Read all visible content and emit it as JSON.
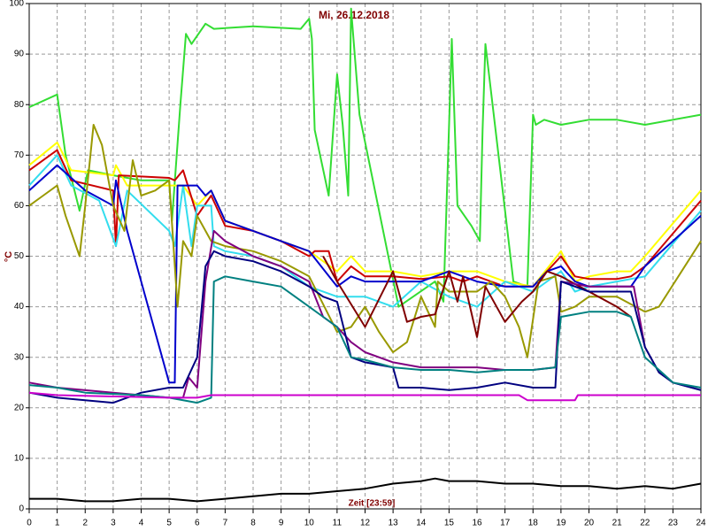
{
  "chart_data": {
    "type": "line",
    "title": "Mi, 26.12.2018",
    "y_label": "°C",
    "x_label": "Zeit [23:59]",
    "xlim": [
      0,
      24
    ],
    "xticks": [
      0,
      1,
      2,
      3,
      4,
      5,
      6,
      7,
      8,
      9,
      10,
      11,
      12,
      13,
      14,
      15,
      16,
      17,
      18,
      19,
      20,
      21,
      22,
      23,
      24
    ],
    "ylim": [
      0,
      100
    ],
    "yticks": [
      0,
      10,
      20,
      30,
      40,
      50,
      60,
      70,
      80,
      90,
      100
    ],
    "grid": true,
    "series": [
      {
        "color": "#33dd33",
        "x": [
          0,
          1,
          1.3,
          1.8,
          2.1,
          3,
          4,
          5,
          5.1,
          5.4,
          5.6,
          5.8,
          6.3,
          6.6,
          8,
          9.7,
          10,
          10.1,
          10.2,
          10.7,
          11,
          11.2,
          11.4,
          11.5,
          11.8,
          13.2,
          14.5,
          14.8,
          15.1,
          15.3,
          15.8,
          16.1,
          16.2,
          16.3,
          17.3,
          17.8,
          18,
          18.1,
          18.4,
          19,
          20,
          21,
          22,
          24
        ],
        "values": [
          79.5,
          82,
          70,
          59,
          67,
          66,
          65,
          65,
          57,
          80,
          94,
          92,
          96,
          95,
          95.5,
          95,
          97,
          93,
          75,
          62,
          86,
          76,
          62,
          99,
          78,
          40,
          45,
          41,
          93,
          60,
          56,
          53,
          75,
          92,
          45,
          44,
          78,
          76,
          77,
          76,
          77,
          77,
          76,
          78
        ]
      },
      {
        "color": "#ffff00",
        "x": [
          0,
          1,
          1.5,
          3,
          3.1,
          3.5,
          5,
          5.5,
          6,
          6.5,
          7,
          8,
          9,
          10,
          11,
          11.5,
          12,
          13,
          14,
          15,
          16,
          17,
          18,
          19,
          19.5,
          20,
          21,
          21.5,
          22,
          24
        ],
        "values": [
          68,
          72.5,
          67,
          66,
          68,
          64,
          64,
          64,
          60,
          63,
          57,
          55,
          53,
          51,
          47,
          50,
          47,
          47,
          46,
          47,
          47,
          45,
          44,
          51,
          45,
          46,
          47,
          47,
          50,
          63
        ]
      },
      {
        "color": "#cc0000",
        "x": [
          0,
          1,
          1.5,
          3,
          3.1,
          3.2,
          5,
          5.2,
          5.5,
          6,
          6.5,
          7,
          8,
          9,
          10,
          10.2,
          10.7,
          11,
          11.5,
          12,
          13,
          14,
          15,
          15.5,
          16,
          17,
          18,
          18.5,
          19,
          19.5,
          20,
          21,
          21.5,
          22,
          24
        ],
        "values": [
          67,
          71,
          65,
          63,
          52,
          66,
          65.5,
          65,
          67,
          58,
          62,
          56,
          55,
          53,
          50,
          51,
          51,
          45,
          48,
          46,
          46,
          45.5,
          46,
          45,
          46,
          44,
          44,
          47,
          50,
          46,
          45.5,
          45.5,
          46,
          48,
          61
        ]
      },
      {
        "color": "#33ddee",
        "x": [
          0,
          1,
          1.5,
          2.5,
          3.1,
          3.5,
          5,
          5.2,
          5.5,
          5.8,
          6,
          6.5,
          6.6,
          7,
          8,
          9,
          10,
          11,
          12,
          13,
          14,
          15,
          16,
          17,
          18,
          19,
          19.5,
          20,
          21,
          22,
          24
        ],
        "values": [
          64,
          70,
          64,
          61,
          52,
          63,
          55,
          52,
          64,
          52,
          60,
          60,
          52,
          51,
          50,
          48,
          44,
          42,
          42,
          40,
          45,
          42,
          40,
          45,
          43,
          47,
          43,
          44,
          45,
          46,
          59
        ]
      },
      {
        "color": "#0000cc",
        "x": [
          0,
          1,
          2,
          3,
          3.1,
          3.5,
          5,
          5.2,
          5.3,
          6,
          6.3,
          6.5,
          7,
          8,
          9,
          10,
          11,
          11.5,
          12,
          13,
          14,
          15,
          16,
          17,
          18,
          18.5,
          19,
          19.5,
          20,
          21,
          21.5,
          22,
          24
        ],
        "values": [
          63,
          68,
          63,
          60,
          65,
          55,
          25,
          25,
          64,
          64,
          62,
          63,
          57,
          55,
          53,
          51,
          44,
          46,
          45,
          45,
          45,
          47,
          45,
          44,
          44,
          47,
          48,
          45,
          44,
          44,
          44,
          48,
          58
        ]
      },
      {
        "color": "#999900",
        "x": [
          0,
          0.5,
          1,
          1.3,
          1.8,
          2,
          2.3,
          2.6,
          3,
          3.4,
          3.7,
          4,
          4.5,
          5,
          5.3,
          5.5,
          5.8,
          6,
          6.5,
          7,
          8,
          9,
          10,
          11,
          11.5,
          12,
          12.5,
          13,
          13.5,
          14,
          14.5,
          14.6,
          15,
          16,
          16.5,
          17,
          17.5,
          17.8,
          18.2,
          18.8,
          19,
          19.5,
          20,
          21,
          22,
          22.5,
          24
        ],
        "values": [
          60,
          62,
          64,
          58,
          50,
          60,
          76,
          72,
          60,
          55,
          69,
          62,
          63,
          65,
          40,
          53,
          50,
          58,
          53,
          52,
          51,
          49,
          46,
          35,
          36,
          40,
          35,
          31,
          33,
          42,
          36,
          45,
          43,
          43,
          45,
          42,
          36,
          30,
          45,
          46,
          39,
          40,
          42,
          42,
          39,
          40,
          53
        ]
      },
      {
        "color": "#800000",
        "x": [
          10.5,
          11,
          12,
          13,
          13.5,
          14,
          14.5,
          15,
          15.3,
          15.5,
          16,
          16.3,
          16.5,
          17,
          17.6,
          18,
          18.5,
          19,
          20,
          21,
          21.5
        ],
        "values": [
          50,
          45,
          36,
          47,
          37,
          38,
          38.5,
          47,
          41,
          46,
          34,
          44,
          42,
          37,
          41,
          43,
          47,
          46,
          43,
          40,
          38
        ]
      },
      {
        "color": "#800080",
        "x": [
          0,
          1,
          3,
          5,
          5.5,
          5.7,
          6,
          6.3,
          6.6,
          7,
          8,
          9,
          10,
          10.5,
          11,
          11.5,
          12,
          13,
          14,
          15,
          16,
          17,
          18,
          18.8,
          19,
          20,
          21,
          21.6,
          22,
          22.5,
          23,
          24
        ],
        "values": [
          25,
          24,
          23,
          22,
          22,
          26,
          24,
          45,
          55,
          53,
          50,
          48,
          45,
          38,
          36,
          33,
          31,
          29,
          28,
          28,
          28,
          27.5,
          27.5,
          28,
          45,
          44,
          44,
          44,
          32,
          27,
          25,
          23.5
        ]
      },
      {
        "color": "#000080",
        "x": [
          0,
          1,
          3,
          4,
          5,
          5.5,
          6,
          6.3,
          6.6,
          7,
          8,
          9,
          10,
          10.5,
          11,
          11.5,
          12,
          13,
          13.2,
          14,
          15,
          16,
          17,
          18,
          18.8,
          19,
          20,
          21,
          21.5,
          22,
          22.5,
          23,
          24
        ],
        "values": [
          23,
          22,
          21,
          23,
          24,
          24,
          30,
          48,
          51,
          50,
          49,
          47,
          44,
          42,
          41,
          30,
          29,
          28,
          24,
          24,
          23.5,
          24,
          25,
          24,
          24,
          45,
          43,
          43,
          43,
          32,
          27,
          25,
          23.5
        ]
      },
      {
        "color": "#008080",
        "x": [
          0,
          1,
          2,
          4,
          5,
          6,
          6.5,
          6.6,
          7,
          8,
          9,
          10,
          10.5,
          11,
          11.5,
          12,
          13,
          14,
          15,
          16,
          17,
          18,
          18.8,
          19,
          20,
          21,
          21.5,
          22,
          23,
          24
        ],
        "values": [
          24.5,
          24,
          23,
          22.5,
          22,
          21,
          22,
          45,
          46,
          45,
          44,
          40,
          38,
          36,
          30,
          29.5,
          28,
          27.5,
          27.5,
          27,
          27.5,
          27.5,
          28,
          38,
          39,
          39,
          38,
          30,
          25,
          24
        ]
      },
      {
        "color": "#cc00cc",
        "x": [
          0,
          1,
          5,
          6,
          6.5,
          17.5,
          17.8,
          19.5,
          19.6,
          24
        ],
        "values": [
          23,
          22.5,
          22,
          22,
          22.5,
          22.5,
          21.5,
          21.5,
          22.5,
          22.5
        ]
      },
      {
        "color": "#000000",
        "x": [
          0,
          1,
          2,
          3,
          4,
          5,
          6,
          7,
          8,
          9,
          10,
          11,
          12,
          13,
          14,
          14.5,
          15,
          16,
          17,
          18,
          19,
          20,
          21,
          22,
          23,
          24
        ],
        "values": [
          2,
          2,
          1.5,
          1.5,
          2,
          2,
          1.5,
          2,
          2.5,
          3,
          3,
          3.5,
          4,
          5,
          5.5,
          6,
          5.5,
          5.5,
          5,
          5,
          4.5,
          4.5,
          4,
          4.5,
          4,
          5
        ]
      }
    ]
  }
}
